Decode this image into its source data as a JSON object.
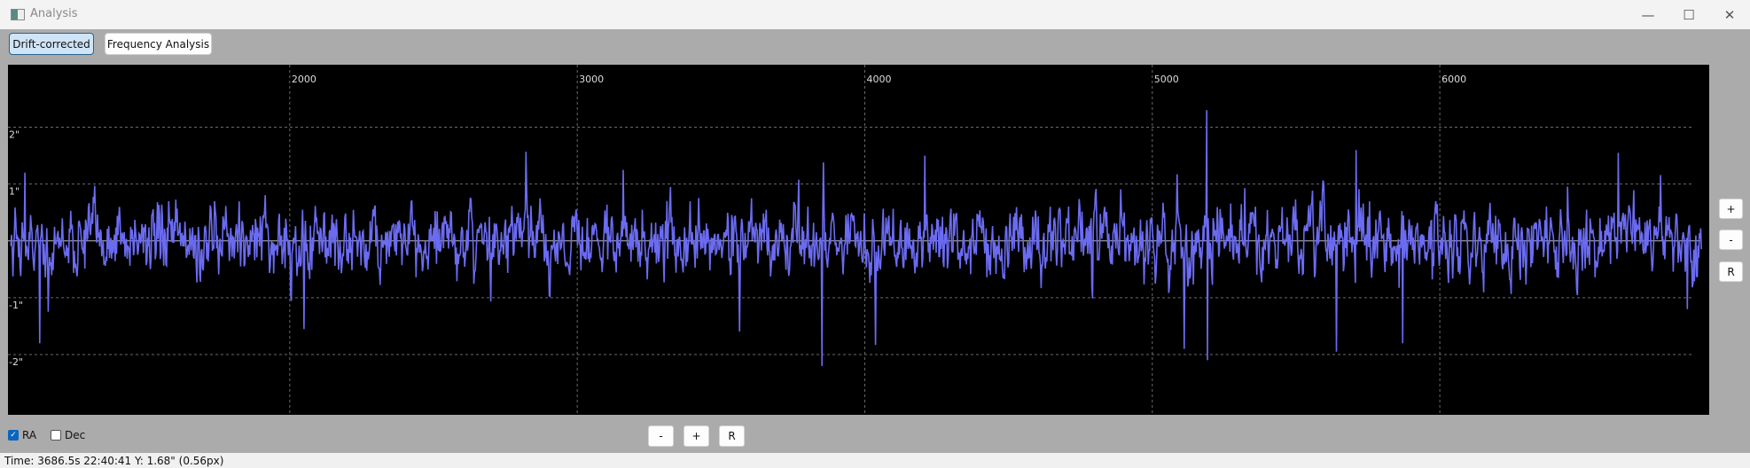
{
  "window": {
    "title": "Analysis",
    "icon": "app-window-icon",
    "controls": [
      "minimize",
      "maximize",
      "close"
    ]
  },
  "tabs": [
    {
      "label": "Drift-corrected",
      "active": true
    },
    {
      "label": "Frequency Analysis",
      "active": false
    }
  ],
  "side_buttons": {
    "zoom_in": "+",
    "zoom_out": "-",
    "reset": "R"
  },
  "bottom_buttons": {
    "zoom_out": "-",
    "zoom_in": "+",
    "reset": "R"
  },
  "checkboxes": [
    {
      "label": "RA",
      "checked": true
    },
    {
      "label": "Dec",
      "checked": false
    }
  ],
  "status": {
    "text": "Time: 3686.5s  22:40:41   Y: 1.68\" (0.56px)"
  },
  "chart_data": {
    "type": "line",
    "background": "#000000",
    "series": [
      {
        "color": "#6b6bf2",
        "description_values": "dense noisy RA drift-corrected trace, std about 0.4\"",
        "x_range": [
          1030,
          6910
        ],
        "notable_points": [
          {
            "x": 1130,
            "y": -1.8
          },
          {
            "x": 1080,
            "y": 1.2
          },
          {
            "x": 2050,
            "y": -1.55
          },
          {
            "x": 3850,
            "y": -2.2
          },
          {
            "x": 3160,
            "y": 1.25
          },
          {
            "x": 4210,
            "y": 1.5
          },
          {
            "x": 5190,
            "y": 2.3
          },
          {
            "x": 5190,
            "y": -2.1
          },
          {
            "x": 5640,
            "y": -1.95
          },
          {
            "x": 5710,
            "y": 1.6
          },
          {
            "x": 5870,
            "y": -1.8
          },
          {
            "x": 6620,
            "y": 1.55
          },
          {
            "x": 6860,
            "y": -1.2
          }
        ]
      }
    ],
    "x_ticks": [
      "2000",
      "3000",
      "4000",
      "5000",
      "6000"
    ],
    "x_tick_values": [
      2000,
      3000,
      4000,
      5000,
      6000
    ],
    "y_ticks": [
      "2\"",
      "1\"",
      "-1\"",
      "-2\""
    ],
    "y_tick_values": [
      2,
      1,
      -1,
      -2
    ],
    "xlim": [
      1020,
      6937
    ],
    "ylim": [
      -3.06,
      3.1
    ],
    "grid": true,
    "zero_line_color": "#bdbdbd",
    "grid_color": "#6a6a6a"
  }
}
